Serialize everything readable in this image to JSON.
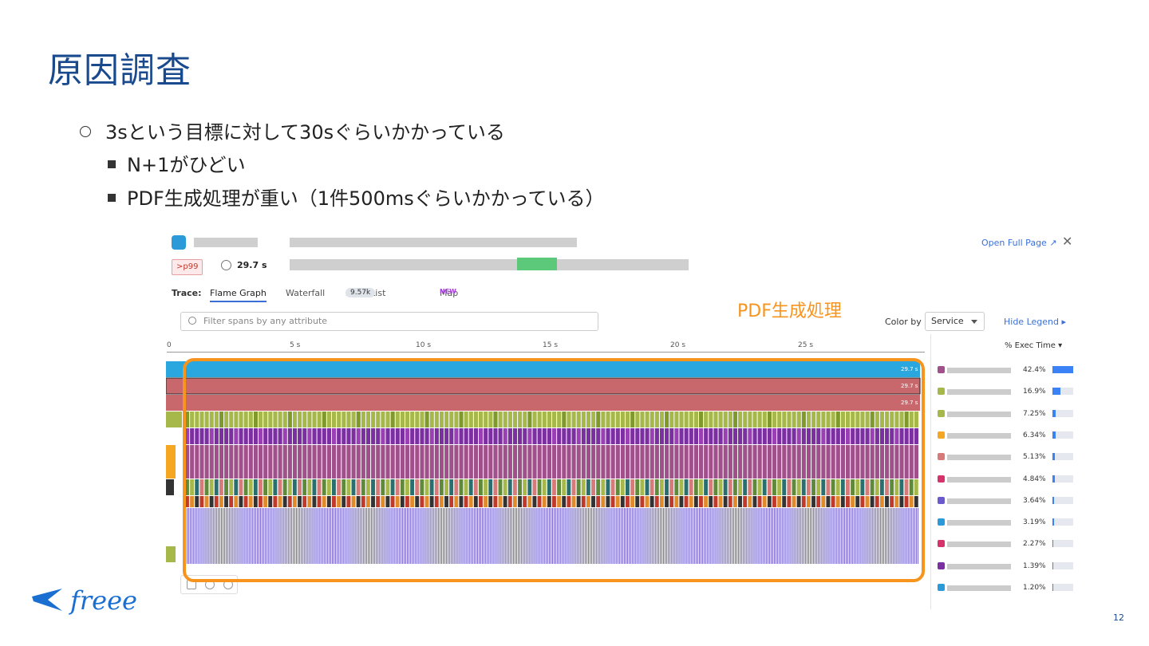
{
  "slide": {
    "title": "原因調査",
    "bullets": [
      "3sという目標に対して30sぐらいかかっている",
      "N+1がひどい",
      "PDF生成処理が重い（1件500msぐらいかかっている）"
    ],
    "annotation_label": "PDF生成処理",
    "page_number": "12",
    "logo_text": "freee",
    "accent_color": "#f7941d",
    "title_color": "#1a4a8e"
  },
  "trace": {
    "p99_badge": ">p99",
    "duration": "29.7 s",
    "open_full_page": "Open Full Page",
    "close_glyph": "✕",
    "trace_label": "Trace:",
    "tabs": [
      {
        "label": "Flame Graph",
        "active": true
      },
      {
        "label": "Waterfall"
      },
      {
        "label": "Span List",
        "badge": "9.57k"
      },
      {
        "label": "Map",
        "new": "NEW"
      }
    ],
    "filter_placeholder": "Filter spans by any attribute",
    "color_by_label": "Color by",
    "color_by_value": "Service",
    "hide_legend": "Hide Legend",
    "axis_ticks": [
      "0",
      "5 s",
      "10 s",
      "15 s",
      "20 s",
      "25 s"
    ],
    "bar_duration_labels": [
      "29.7 s",
      "29.7 s",
      "29.7 s"
    ],
    "legend_header": "% Exec Time",
    "legend": [
      {
        "color": "#a0508a",
        "pct": "42.4%",
        "value": 42.4
      },
      {
        "color": "#a6b84a",
        "pct": "16.9%",
        "value": 16.9
      },
      {
        "color": "#a6b84a",
        "pct": "7.25%",
        "value": 7.25
      },
      {
        "color": "#f5a623",
        "pct": "6.34%",
        "value": 6.34
      },
      {
        "color": "#d77a7a",
        "pct": "5.13%",
        "value": 5.13
      },
      {
        "color": "#d6336c",
        "pct": "4.84%",
        "value": 4.84
      },
      {
        "color": "#6a5acd",
        "pct": "3.64%",
        "value": 3.64
      },
      {
        "color": "#2a9ad8",
        "pct": "3.19%",
        "value": 3.19
      },
      {
        "color": "#d6336c",
        "pct": "2.27%",
        "value": 2.27
      },
      {
        "color": "#7b2fa0",
        "pct": "1.39%",
        "value": 1.39
      },
      {
        "color": "#2a9ad8",
        "pct": "1.20%",
        "value": 1.2
      }
    ]
  }
}
